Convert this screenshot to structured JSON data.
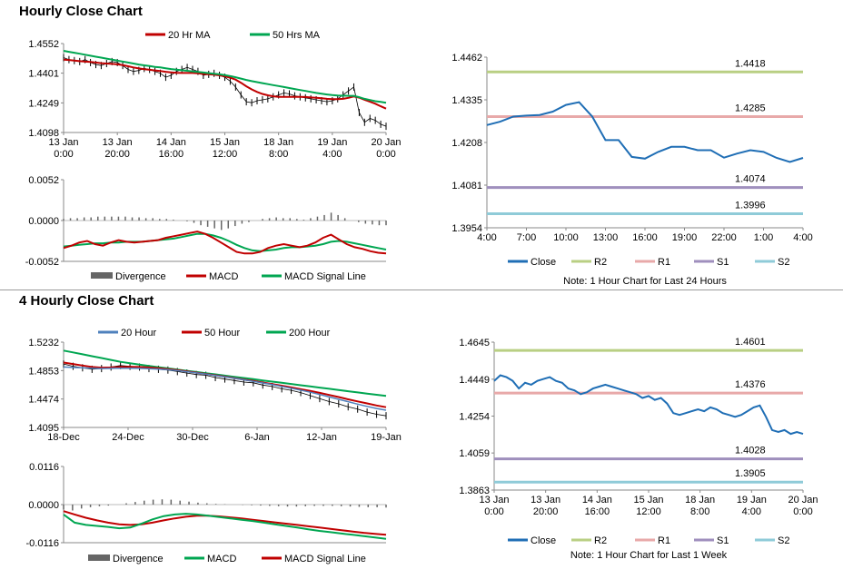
{
  "sections": {
    "hourly_title": "Hourly Close Chart",
    "four_hourly_title": "4 Hourly Close Chart"
  },
  "colors": {
    "ma20_hourly": "#c00000",
    "ma50_hourly": "#00a651",
    "close": "#1f6eb5",
    "r2": "#b9cf83",
    "r1": "#e8a9a9",
    "s1": "#9f8fbd",
    "s2": "#8fcbd8",
    "divergence": "#666666",
    "macd_red": "#c00000",
    "macd_green": "#00a651",
    "ma20_4h": "#4f81bd",
    "ma50_4h": "#c00000",
    "ma200_4h": "#00a651"
  },
  "chart_data": [
    {
      "id": "hourly_price",
      "type": "line",
      "legend": [
        "20 Hr MA",
        "50 Hrs MA"
      ],
      "yticks": [
        "1.4552",
        "1.4401",
        "1.4249",
        "1.4098"
      ],
      "ylim": [
        1.4098,
        1.4552
      ],
      "xticks": [
        [
          "13 Jan",
          "0:00"
        ],
        [
          "13 Jan",
          "20:00"
        ],
        [
          "14 Jan",
          "16:00"
        ],
        [
          "15 Jan",
          "12:00"
        ],
        [
          "18 Jan",
          "8:00"
        ],
        [
          "19 Jan",
          "4:00"
        ],
        [
          "20 Jan",
          "0:00"
        ]
      ],
      "close": [
        1.448,
        1.447,
        1.4465,
        1.446,
        1.447,
        1.4455,
        1.4445,
        1.444,
        1.445,
        1.446,
        1.4455,
        1.444,
        1.442,
        1.441,
        1.4415,
        1.4425,
        1.442,
        1.441,
        1.44,
        1.438,
        1.439,
        1.441,
        1.442,
        1.443,
        1.442,
        1.441,
        1.439,
        1.4395,
        1.44,
        1.439,
        1.438,
        1.436,
        1.433,
        1.429,
        1.4255,
        1.425,
        1.426,
        1.4265,
        1.427,
        1.428,
        1.429,
        1.43,
        1.4295,
        1.4285,
        1.428,
        1.4275,
        1.427,
        1.4265,
        1.426,
        1.4255,
        1.426,
        1.427,
        1.429,
        1.431,
        1.433,
        1.42,
        1.415,
        1.417,
        1.416,
        1.414,
        1.413
      ],
      "ma20": [
        1.447,
        1.4468,
        1.4465,
        1.4462,
        1.446,
        1.4458,
        1.4455,
        1.4452,
        1.445,
        1.4448,
        1.4446,
        1.4442,
        1.4436,
        1.443,
        1.4425,
        1.4421,
        1.4418,
        1.4415,
        1.4412,
        1.4408,
        1.4405,
        1.4403,
        1.4402,
        1.4402,
        1.4402,
        1.44,
        1.4397,
        1.4395,
        1.4393,
        1.439,
        1.4385,
        1.4378,
        1.4368,
        1.4352,
        1.4334,
        1.4318,
        1.4305,
        1.4295,
        1.4288,
        1.4283,
        1.428,
        1.428,
        1.428,
        1.428,
        1.428,
        1.4279,
        1.4277,
        1.4275,
        1.4273,
        1.427,
        1.4268,
        1.4268,
        1.427,
        1.4275,
        1.4282,
        1.4276,
        1.4265,
        1.4255,
        1.4245,
        1.4232,
        1.422
      ],
      "ma50": [
        1.4515,
        1.451,
        1.4505,
        1.45,
        1.4495,
        1.449,
        1.4485,
        1.448,
        1.4475,
        1.447,
        1.4465,
        1.446,
        1.4455,
        1.445,
        1.4445,
        1.4441,
        1.4437,
        1.4433,
        1.443,
        1.4426,
        1.4422,
        1.4419,
        1.4416,
        1.4413,
        1.441,
        1.4407,
        1.4404,
        1.4401,
        1.4398,
        1.4395,
        1.4391,
        1.4386,
        1.438,
        1.4373,
        1.4366,
        1.436,
        1.4355,
        1.435,
        1.4345,
        1.434,
        1.4335,
        1.433,
        1.4325,
        1.432,
        1.4315,
        1.431,
        1.4305,
        1.43,
        1.4296,
        1.4292,
        1.4289,
        1.4287,
        1.4286,
        1.4285,
        1.4285,
        1.4278,
        1.427,
        1.4264,
        1.4258,
        1.4254,
        1.425
      ]
    },
    {
      "id": "hourly_macd",
      "type": "line",
      "legend": [
        "Divergence",
        "MACD",
        "MACD Signal Line"
      ],
      "yticks": [
        "0.0052",
        "0.0000",
        "-0.0052"
      ],
      "ylim": [
        -0.0052,
        0.0052
      ],
      "divergence": [
        0.0002,
        0.0003,
        0.0003,
        0.0004,
        0.0004,
        0.0005,
        0.0005,
        0.0005,
        0.0005,
        0.0005,
        0.0004,
        0.0004,
        0.0003,
        0.0003,
        0.0002,
        0.0002,
        0.0001,
        0.0,
        -0.0001,
        -0.0003,
        -0.0006,
        -0.0008,
        -0.001,
        -0.0012,
        -0.001,
        -0.0007,
        -0.0004,
        -0.0002,
        0.0,
        0.0002,
        0.0003,
        0.0004,
        0.0003,
        0.0003,
        0.0002,
        0.0001,
        0.0003,
        0.0005,
        0.0007,
        0.001,
        0.0007,
        0.0003,
        0.0,
        -0.0002,
        -0.0004,
        -0.0005,
        -0.0006,
        -0.0006
      ],
      "macd": [
        -0.0035,
        -0.0032,
        -0.0028,
        -0.0026,
        -0.003,
        -0.0032,
        -0.0028,
        -0.0025,
        -0.0027,
        -0.0028,
        -0.0027,
        -0.0026,
        -0.0025,
        -0.0022,
        -0.002,
        -0.0018,
        -0.0016,
        -0.0014,
        -0.0017,
        -0.0022,
        -0.0028,
        -0.0034,
        -0.004,
        -0.0042,
        -0.0042,
        -0.004,
        -0.0035,
        -0.0032,
        -0.003,
        -0.0032,
        -0.0034,
        -0.0032,
        -0.0028,
        -0.0022,
        -0.0018,
        -0.0024,
        -0.003,
        -0.0034,
        -0.0036,
        -0.0039,
        -0.0041,
        -0.0042
      ],
      "signal": [
        -0.0033,
        -0.0032,
        -0.0031,
        -0.003,
        -0.0029,
        -0.0029,
        -0.0028,
        -0.0028,
        -0.0027,
        -0.0027,
        -0.0027,
        -0.0026,
        -0.0025,
        -0.0024,
        -0.0023,
        -0.0021,
        -0.0019,
        -0.0017,
        -0.0017,
        -0.0019,
        -0.0022,
        -0.0026,
        -0.0031,
        -0.0035,
        -0.0038,
        -0.0039,
        -0.0038,
        -0.0037,
        -0.0035,
        -0.0034,
        -0.0034,
        -0.0033,
        -0.0032,
        -0.003,
        -0.0027,
        -0.0026,
        -0.0027,
        -0.0029,
        -0.0031,
        -0.0033,
        -0.0035,
        -0.0037
      ]
    },
    {
      "id": "hourly_close_24h",
      "type": "line",
      "legend": [
        "Close",
        "R2",
        "R1",
        "S1",
        "S2"
      ],
      "yticks": [
        "1.4462",
        "1.4335",
        "1.4208",
        "1.4081",
        "1.3954"
      ],
      "ylim": [
        1.3954,
        1.4462
      ],
      "xticks": [
        "4:00",
        "7:00",
        "10:00",
        "13:00",
        "16:00",
        "19:00",
        "22:00",
        "1:00",
        "4:00"
      ],
      "levels": [
        {
          "name": "R2",
          "value": 1.4418,
          "label": "1.4418"
        },
        {
          "name": "R1",
          "value": 1.4285,
          "label": "1.4285"
        },
        {
          "name": "S1",
          "value": 1.4074,
          "label": "1.4074"
        },
        {
          "name": "S2",
          "value": 1.3996,
          "label": "1.3996"
        }
      ],
      "close": [
        1.426,
        1.427,
        1.4285,
        1.4288,
        1.429,
        1.43,
        1.432,
        1.4328,
        1.4285,
        1.4215,
        1.4215,
        1.4165,
        1.416,
        1.418,
        1.4195,
        1.4195,
        1.4185,
        1.4185,
        1.4163,
        1.4175,
        1.4185,
        1.418,
        1.4162,
        1.415,
        1.4162
      ],
      "note": "Note: 1 Hour Chart for Last 24 Hours"
    },
    {
      "id": "four_hourly_price",
      "type": "line",
      "legend": [
        "20 Hour",
        "50 Hour",
        "200 Hour"
      ],
      "yticks": [
        "1.5232",
        "1.4853",
        "1.4474",
        "1.4095"
      ],
      "ylim": [
        1.4095,
        1.5232
      ],
      "xticks": [
        "18-Dec",
        "24-Dec",
        "30-Dec",
        "6-Jan",
        "12-Jan",
        "19-Jan"
      ],
      "close": [
        1.494,
        1.491,
        1.489,
        1.487,
        1.488,
        1.49,
        1.492,
        1.491,
        1.49,
        1.488,
        1.487,
        1.486,
        1.484,
        1.482,
        1.48,
        1.479,
        1.476,
        1.474,
        1.472,
        1.47,
        1.469,
        1.466,
        1.464,
        1.461,
        1.459,
        1.456,
        1.452,
        1.448,
        1.444,
        1.441,
        1.437,
        1.434,
        1.43,
        1.427,
        1.425
      ],
      "ma20": [
        1.49,
        1.4895,
        1.489,
        1.4885,
        1.488,
        1.4882,
        1.4885,
        1.4885,
        1.4882,
        1.4878,
        1.4872,
        1.4864,
        1.4852,
        1.4838,
        1.4822,
        1.4806,
        1.4788,
        1.477,
        1.475,
        1.473,
        1.471,
        1.4688,
        1.4666,
        1.4642,
        1.4618,
        1.4592,
        1.4564,
        1.4534,
        1.4502,
        1.447,
        1.4438,
        1.4406,
        1.4376,
        1.4348,
        1.4325
      ],
      "ma50": [
        1.496,
        1.494,
        1.492,
        1.49,
        1.4892,
        1.4895,
        1.49,
        1.4902,
        1.49,
        1.4895,
        1.4885,
        1.4872,
        1.4858,
        1.4842,
        1.4825,
        1.4808,
        1.479,
        1.4772,
        1.4753,
        1.4734,
        1.4714,
        1.4694,
        1.4673,
        1.4652,
        1.463,
        1.4606,
        1.4582,
        1.4556,
        1.4528,
        1.45,
        1.447,
        1.4442,
        1.4415,
        1.4388,
        1.4365
      ],
      "ma200": [
        1.512,
        1.5095,
        1.507,
        1.5045,
        1.502,
        1.4995,
        1.497,
        1.495,
        1.4932,
        1.4915,
        1.4898,
        1.4882,
        1.4866,
        1.485,
        1.4834,
        1.4818,
        1.4802,
        1.4786,
        1.477,
        1.4754,
        1.4738,
        1.4722,
        1.4706,
        1.469,
        1.4674,
        1.4658,
        1.4642,
        1.4626,
        1.461,
        1.4594,
        1.4578,
        1.4562,
        1.4546,
        1.453,
        1.4515
      ]
    },
    {
      "id": "four_hourly_macd",
      "type": "line",
      "legend": [
        "Divergence",
        "MACD",
        "MACD Signal Line"
      ],
      "yticks": [
        "0.0116",
        "0.0000",
        "-0.0116"
      ],
      "ylim": [
        -0.0116,
        0.0116
      ],
      "divergence": [
        -0.0015,
        -0.0018,
        -0.0012,
        -0.0008,
        -0.0005,
        -0.0003,
        0.0,
        0.0004,
        0.0008,
        0.0012,
        0.0015,
        0.0016,
        0.0015,
        0.0012,
        0.0009,
        0.0006,
        0.0004,
        0.0002,
        0.0001,
        0.0,
        -0.0001,
        -0.0002,
        -0.0003,
        -0.0004,
        -0.0005,
        -0.0006,
        -0.0006,
        -0.0005,
        -0.0004,
        -0.0004,
        -0.0004,
        -0.0005,
        -0.0006,
        -0.0007,
        -0.0008,
        -0.0008,
        -0.0009
      ],
      "macd": [
        -0.003,
        -0.0055,
        -0.0062,
        -0.0065,
        -0.0068,
        -0.0072,
        -0.007,
        -0.0058,
        -0.0045,
        -0.0035,
        -0.003,
        -0.0028,
        -0.003,
        -0.0034,
        -0.0038,
        -0.0042,
        -0.0046,
        -0.005,
        -0.0055,
        -0.006,
        -0.0065,
        -0.007,
        -0.0075,
        -0.008,
        -0.0084,
        -0.0088,
        -0.0092,
        -0.0096,
        -0.01,
        -0.0104
      ],
      "signal": [
        -0.002,
        -0.003,
        -0.004,
        -0.0048,
        -0.0055,
        -0.006,
        -0.0062,
        -0.006,
        -0.0055,
        -0.0048,
        -0.0042,
        -0.0037,
        -0.0034,
        -0.0034,
        -0.0036,
        -0.0039,
        -0.0042,
        -0.0046,
        -0.005,
        -0.0054,
        -0.0058,
        -0.0062,
        -0.0066,
        -0.007,
        -0.0074,
        -0.0078,
        -0.0082,
        -0.0086,
        -0.0089,
        -0.0092
      ]
    },
    {
      "id": "four_hourly_close_week",
      "type": "line",
      "legend": [
        "Close",
        "R2",
        "R1",
        "S1",
        "S2"
      ],
      "yticks": [
        "1.4645",
        "1.4449",
        "1.4254",
        "1.4059",
        "1.3863"
      ],
      "ylim": [
        1.3863,
        1.4645
      ],
      "xticks": [
        [
          "13 Jan",
          "0:00"
        ],
        [
          "13 Jan",
          "20:00"
        ],
        [
          "14 Jan",
          "16:00"
        ],
        [
          "15 Jan",
          "12:00"
        ],
        [
          "18 Jan",
          "8:00"
        ],
        [
          "19 Jan",
          "4:00"
        ],
        [
          "20 Jan",
          "0:00"
        ]
      ],
      "levels": [
        {
          "name": "R2",
          "value": 1.4601,
          "label": "1.4601"
        },
        {
          "name": "R1",
          "value": 1.4376,
          "label": "1.4376"
        },
        {
          "name": "S1",
          "value": 1.4028,
          "label": "1.4028"
        },
        {
          "name": "S2",
          "value": 1.3905,
          "label": "1.3905"
        }
      ],
      "close": [
        1.444,
        1.447,
        1.446,
        1.444,
        1.44,
        1.443,
        1.442,
        1.444,
        1.445,
        1.446,
        1.444,
        1.443,
        1.44,
        1.439,
        1.437,
        1.438,
        1.44,
        1.441,
        1.442,
        1.441,
        1.44,
        1.439,
        1.438,
        1.437,
        1.435,
        1.436,
        1.434,
        1.435,
        1.432,
        1.427,
        1.426,
        1.427,
        1.428,
        1.429,
        1.428,
        1.43,
        1.429,
        1.427,
        1.426,
        1.425,
        1.426,
        1.428,
        1.43,
        1.431,
        1.425,
        1.418,
        1.417,
        1.418,
        1.416,
        1.417,
        1.416
      ],
      "note": "Note: 1 Hour Chart for Last 1 Week"
    }
  ]
}
